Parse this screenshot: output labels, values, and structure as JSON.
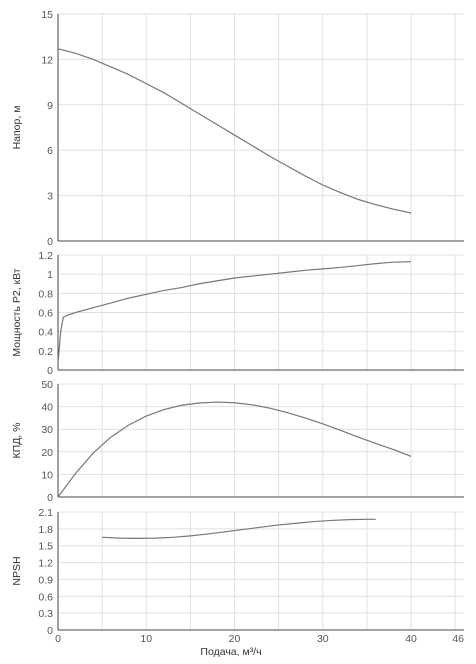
{
  "chart_data": [
    {
      "type": "line",
      "ylabel": "Напор, м",
      "xlim": [
        0,
        46
      ],
      "ylim": [
        0,
        15
      ],
      "yticks": [
        0,
        3,
        6,
        9,
        12,
        15
      ],
      "series": [
        {
          "x": [
            0,
            2,
            4,
            6,
            8,
            10,
            12,
            14,
            16,
            18,
            20,
            22,
            24,
            26,
            28,
            30,
            32,
            34,
            36,
            38,
            40
          ],
          "y": [
            12.7,
            12.4,
            12.0,
            11.5,
            11.0,
            10.4,
            9.8,
            9.1,
            8.4,
            7.7,
            7.0,
            6.3,
            5.6,
            4.95,
            4.3,
            3.7,
            3.2,
            2.75,
            2.4,
            2.1,
            1.85
          ]
        }
      ],
      "grid": true
    },
    {
      "type": "line",
      "ylabel": "Мощность Р2, кВт",
      "xlim": [
        0,
        46
      ],
      "ylim": [
        0,
        1.2
      ],
      "yticks": [
        0,
        0.2,
        0.4,
        0.6,
        0.8,
        1,
        1.2
      ],
      "series": [
        {
          "x": [
            0,
            0.3,
            0.6,
            1,
            2,
            4,
            6,
            8,
            10,
            12,
            14,
            16,
            18,
            20,
            22,
            24,
            26,
            28,
            30,
            32,
            34,
            36,
            38,
            40
          ],
          "y": [
            0.07,
            0.4,
            0.55,
            0.57,
            0.6,
            0.65,
            0.7,
            0.75,
            0.79,
            0.83,
            0.86,
            0.9,
            0.93,
            0.96,
            0.98,
            1.0,
            1.02,
            1.04,
            1.055,
            1.07,
            1.09,
            1.11,
            1.125,
            1.13
          ]
        }
      ],
      "grid": true
    },
    {
      "type": "line",
      "ylabel": "КПД, %",
      "xlim": [
        0,
        46
      ],
      "ylim": [
        0,
        50
      ],
      "yticks": [
        0,
        10,
        20,
        30,
        40,
        50
      ],
      "series": [
        {
          "x": [
            0,
            2,
            4,
            6,
            8,
            10,
            12,
            14,
            16,
            18,
            20,
            22,
            24,
            26,
            28,
            30,
            32,
            34,
            36,
            38,
            40
          ],
          "y": [
            0,
            10.5,
            19.5,
            26.5,
            31.8,
            35.8,
            38.7,
            40.6,
            41.6,
            42.0,
            41.7,
            40.8,
            39.3,
            37.3,
            35.0,
            32.4,
            29.5,
            26.5,
            23.7,
            21.0,
            18.0
          ]
        }
      ],
      "grid": true
    },
    {
      "type": "line",
      "ylabel": "NPSH",
      "xlabel": "Подача, м³/ч",
      "xlim": [
        0,
        46
      ],
      "ylim": [
        0,
        2.1
      ],
      "yticks": [
        0,
        0.3,
        0.6,
        0.9,
        1.2,
        1.5,
        1.8,
        2.1
      ],
      "xticks": [
        0,
        10,
        20,
        30,
        40,
        46
      ],
      "series": [
        {
          "x": [
            5,
            7,
            9,
            11,
            13,
            15,
            17,
            19,
            21,
            23,
            25,
            27,
            29,
            31,
            33,
            35,
            36
          ],
          "y": [
            1.65,
            1.635,
            1.63,
            1.635,
            1.65,
            1.675,
            1.71,
            1.75,
            1.79,
            1.83,
            1.87,
            1.9,
            1.93,
            1.95,
            1.965,
            1.97,
            1.97
          ]
        }
      ],
      "grid": true
    }
  ]
}
